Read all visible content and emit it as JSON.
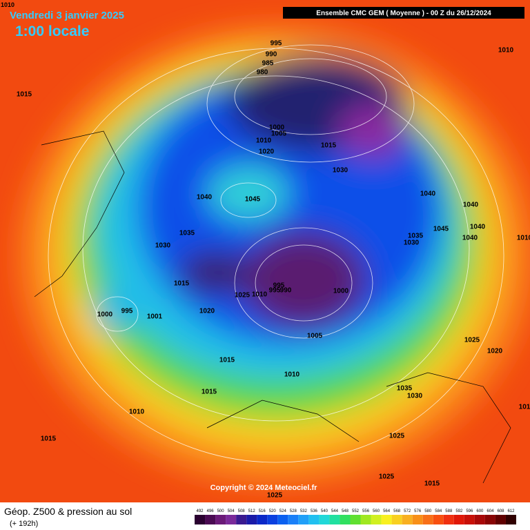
{
  "header": {
    "date": "Vendredi 3 janvier 2025",
    "time": "1:00 locale",
    "model": "Ensemble CMC GEM  ( Moyenne )  -  00 Z du 26/12/2024",
    "corner": "1010"
  },
  "isobar_labels": [
    "995",
    "990",
    "985",
    "980",
    "1010",
    "1015",
    "1000",
    "1005",
    "1010",
    "1020",
    "1015",
    "1030",
    "1040",
    "1040",
    "1045",
    "1040",
    "1035",
    "1040",
    "1045",
    "1035",
    "1030",
    "1040",
    "1030",
    "1015",
    "995",
    "995",
    "990",
    "1025",
    "1010",
    "1000",
    "1000",
    "995",
    "1001",
    "1020",
    "1005",
    "1025",
    "1020",
    "1015",
    "1010",
    "1035",
    "1030",
    "1015",
    "1010",
    "1025",
    "1015",
    "1025",
    "1015",
    "1025",
    "1010",
    "101"
  ],
  "footer": {
    "title": "Géop. Z500 & pression au sol",
    "subtitle": "(+ 192h)",
    "copyright": "Copyright © 2024 Meteociel.fr"
  },
  "scale": {
    "labels": [
      "492",
      "496",
      "500",
      "504",
      "508",
      "512",
      "516",
      "520",
      "524",
      "528",
      "532",
      "536",
      "540",
      "544",
      "548",
      "552",
      "556",
      "560",
      "564",
      "568",
      "572",
      "576",
      "580",
      "584",
      "588",
      "592",
      "596",
      "600",
      "604",
      "608",
      "612"
    ],
    "colors": [
      "#2a0030",
      "#4a0a52",
      "#6a1a78",
      "#7a2a9a",
      "#3a1a90",
      "#1a1aa8",
      "#0a28c8",
      "#0a40e0",
      "#0a60f0",
      "#1a80f8",
      "#20a0f8",
      "#20c0f0",
      "#20d8d8",
      "#20e0a0",
      "#30e060",
      "#60e030",
      "#a0e820",
      "#d0f020",
      "#f8f020",
      "#f8d020",
      "#f8b020",
      "#f89018",
      "#f87018",
      "#f85010",
      "#f03010",
      "#e01808",
      "#c81008",
      "#a80808",
      "#880404",
      "#600000",
      "#300000"
    ]
  }
}
